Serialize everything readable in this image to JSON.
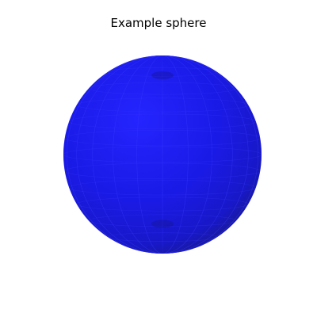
{
  "chart_data": {
    "type": "surface3d",
    "title": "Example sphere",
    "shape": "sphere",
    "center": [
      0,
      0,
      0
    ],
    "radius": 1,
    "color": "#1a1ae6",
    "axes": "off",
    "grid": false
  }
}
